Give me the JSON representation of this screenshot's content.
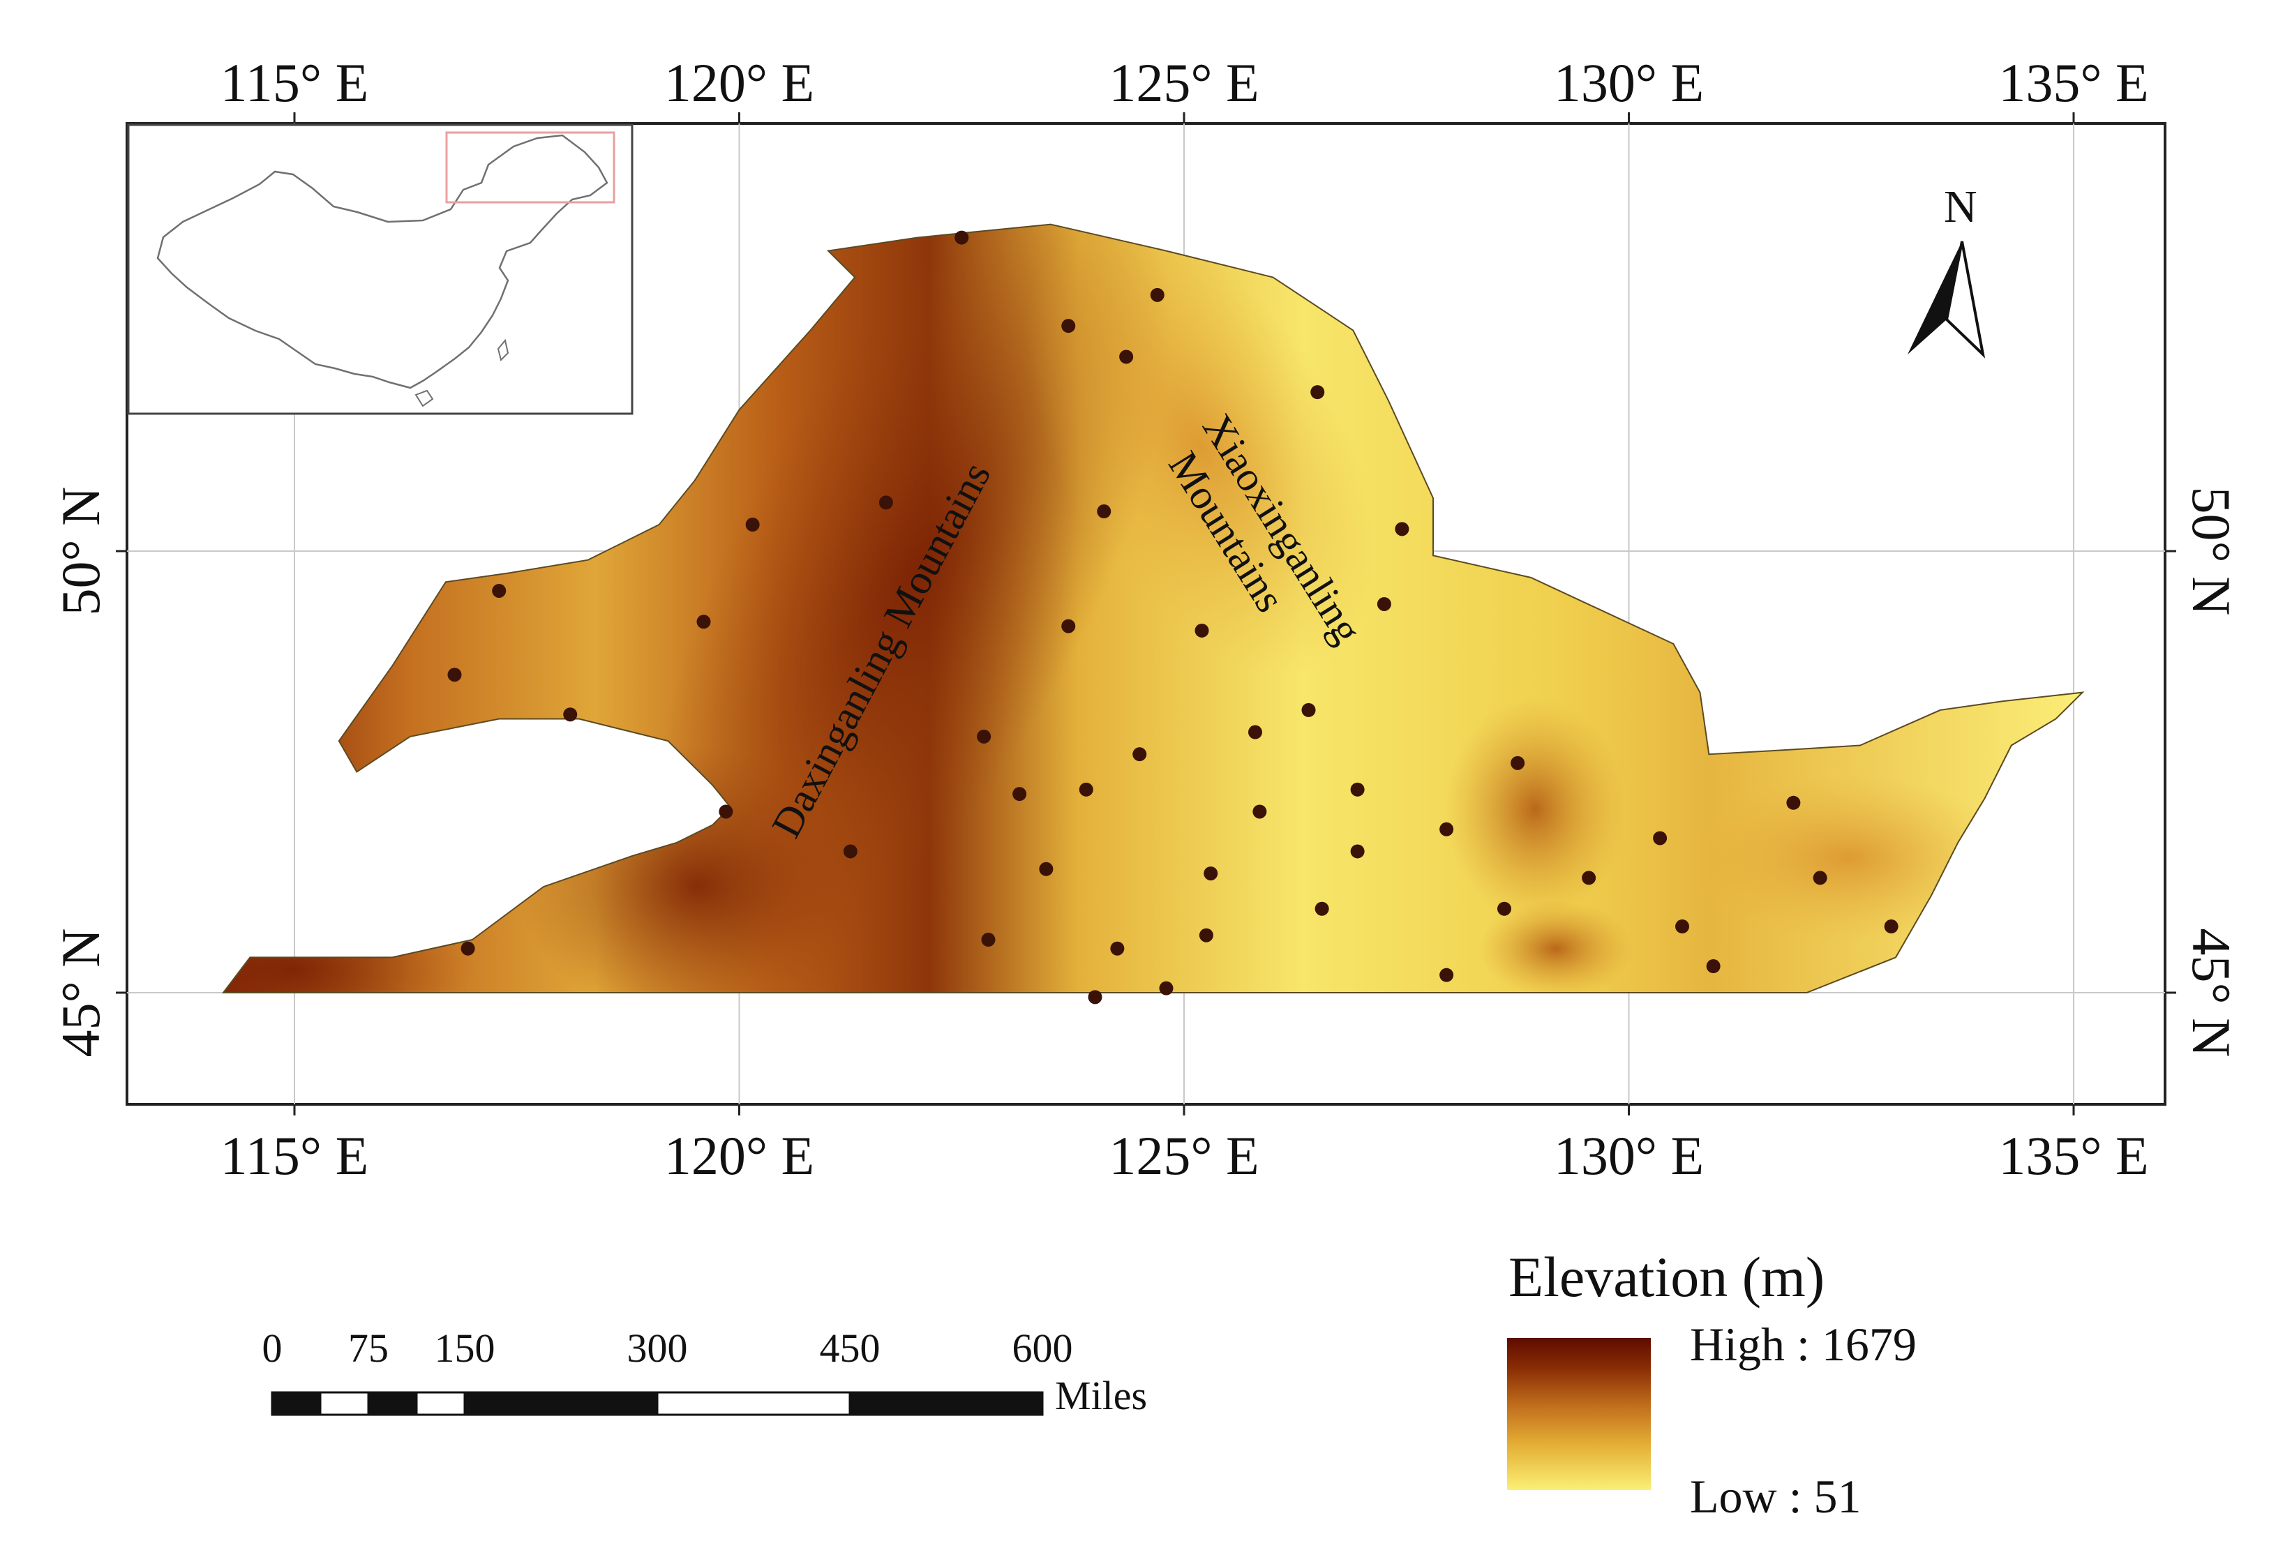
{
  "map": {
    "lon_ticks": [
      "115° E",
      "120° E",
      "125° E",
      "130° E",
      "135° E"
    ],
    "lat_ticks": [
      "50° N",
      "45° N"
    ],
    "labels": {
      "daxing": "Daxinganling Mountains",
      "xiaoxing_line1": "Xiaoxinganling",
      "xiaoxing_line2": "Mountains"
    },
    "north_label": "N",
    "stations": [
      [
        122.5,
        53.55
      ],
      [
        123.7,
        52.55
      ],
      [
        124.7,
        52.9
      ],
      [
        124.35,
        52.2
      ],
      [
        126.5,
        51.8
      ],
      [
        121.65,
        50.55
      ],
      [
        120.15,
        50.3
      ],
      [
        124.1,
        50.45
      ],
      [
        127.45,
        50.25
      ],
      [
        117.3,
        49.55
      ],
      [
        119.6,
        49.2
      ],
      [
        123.7,
        49.15
      ],
      [
        125.2,
        49.1
      ],
      [
        127.25,
        49.4
      ],
      [
        116.8,
        48.6
      ],
      [
        118.1,
        48.15
      ],
      [
        126.4,
        48.2
      ],
      [
        125.8,
        47.95
      ],
      [
        122.75,
        47.9
      ],
      [
        124.5,
        47.7
      ],
      [
        128.75,
        47.6
      ],
      [
        123.15,
        47.25
      ],
      [
        123.9,
        47.3
      ],
      [
        125.85,
        47.05
      ],
      [
        126.95,
        47.3
      ],
      [
        119.85,
        47.05
      ],
      [
        127.95,
        46.85
      ],
      [
        121.25,
        46.6
      ],
      [
        126.95,
        46.6
      ],
      [
        130.35,
        46.75
      ],
      [
        131.85,
        47.15
      ],
      [
        123.45,
        46.4
      ],
      [
        125.3,
        46.35
      ],
      [
        129.55,
        46.3
      ],
      [
        132.15,
        46.3
      ],
      [
        126.55,
        45.95
      ],
      [
        128.6,
        45.95
      ],
      [
        122.8,
        45.6
      ],
      [
        125.25,
        45.65
      ],
      [
        130.6,
        45.75
      ],
      [
        132.95,
        45.75
      ],
      [
        116.95,
        45.5
      ],
      [
        124.25,
        45.5
      ],
      [
        130.95,
        45.3
      ],
      [
        127.95,
        45.2
      ],
      [
        124.8,
        45.05
      ],
      [
        124.0,
        44.95
      ]
    ]
  },
  "inset": {},
  "scale_bar": {
    "tick_labels": [
      "0",
      "75",
      "150",
      "300",
      "450",
      "600"
    ],
    "unit": "Miles"
  },
  "legend": {
    "title": "Elevation (m)",
    "high_label": "High : 1679",
    "low_label": "Low : 51",
    "colors": [
      "#5e0c00",
      "#8a2d05",
      "#b8661a",
      "#dd9a2c",
      "#f1cd47",
      "#fbef75"
    ]
  }
}
